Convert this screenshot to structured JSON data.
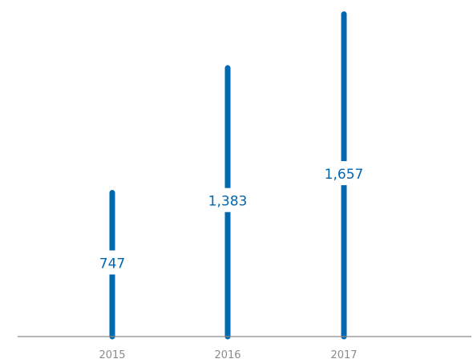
{
  "chart_data": {
    "type": "bar",
    "categories": [
      "2015",
      "2016",
      "2017"
    ],
    "values": [
      747,
      1383,
      1657
    ],
    "data_labels": [
      "747",
      "1,383",
      "1,657"
    ],
    "title": "",
    "xlabel": "",
    "ylabel": "",
    "ylim": [
      0,
      1670
    ],
    "grid": false,
    "legend": "none",
    "colors": {
      "bar": "#0067b1",
      "label": "#0067b1",
      "axis": "#8a8a8a",
      "tick": "#8a8a8a"
    }
  }
}
